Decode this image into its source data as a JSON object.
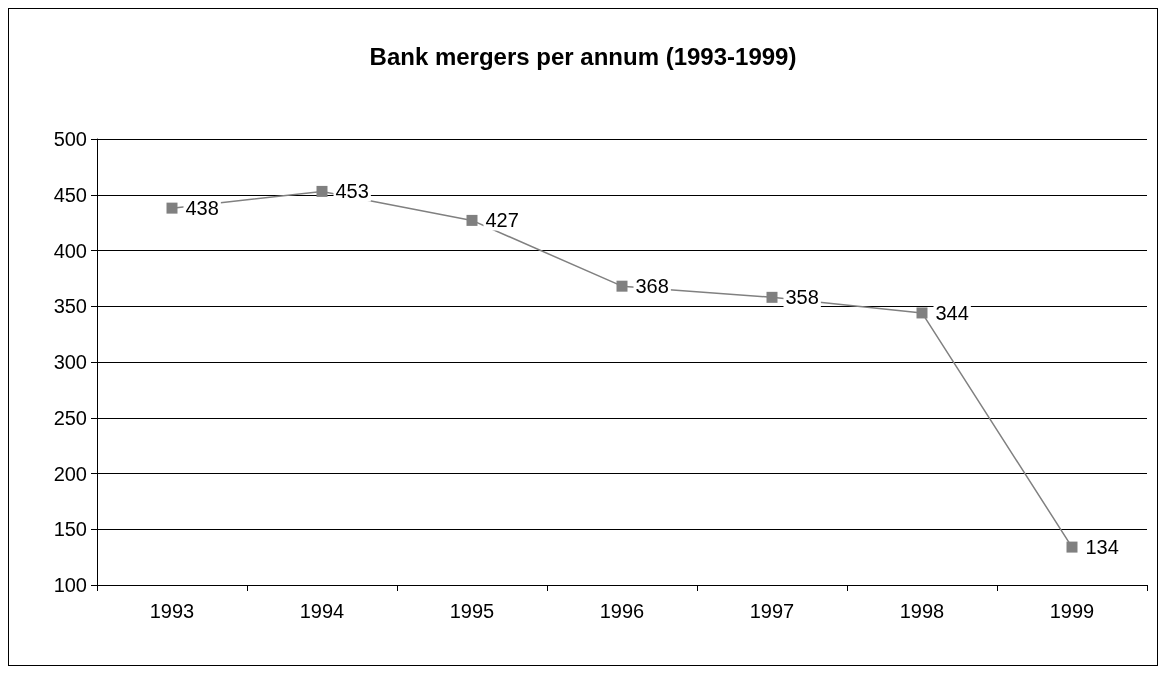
{
  "chart_data": {
    "type": "line",
    "title": "Bank mergers per annum (1993-1999)",
    "categories": [
      "1993",
      "1994",
      "1995",
      "1996",
      "1997",
      "1998",
      "1999"
    ],
    "series": [
      {
        "color": "#808080",
        "values": [
          438,
          453,
          427,
          368,
          358,
          344,
          134
        ]
      }
    ],
    "ylim": [
      100,
      500
    ],
    "yticks": [
      100,
      150,
      200,
      250,
      300,
      350,
      400,
      450,
      500
    ],
    "grid": "y",
    "marker": "square",
    "data_labels": true
  }
}
